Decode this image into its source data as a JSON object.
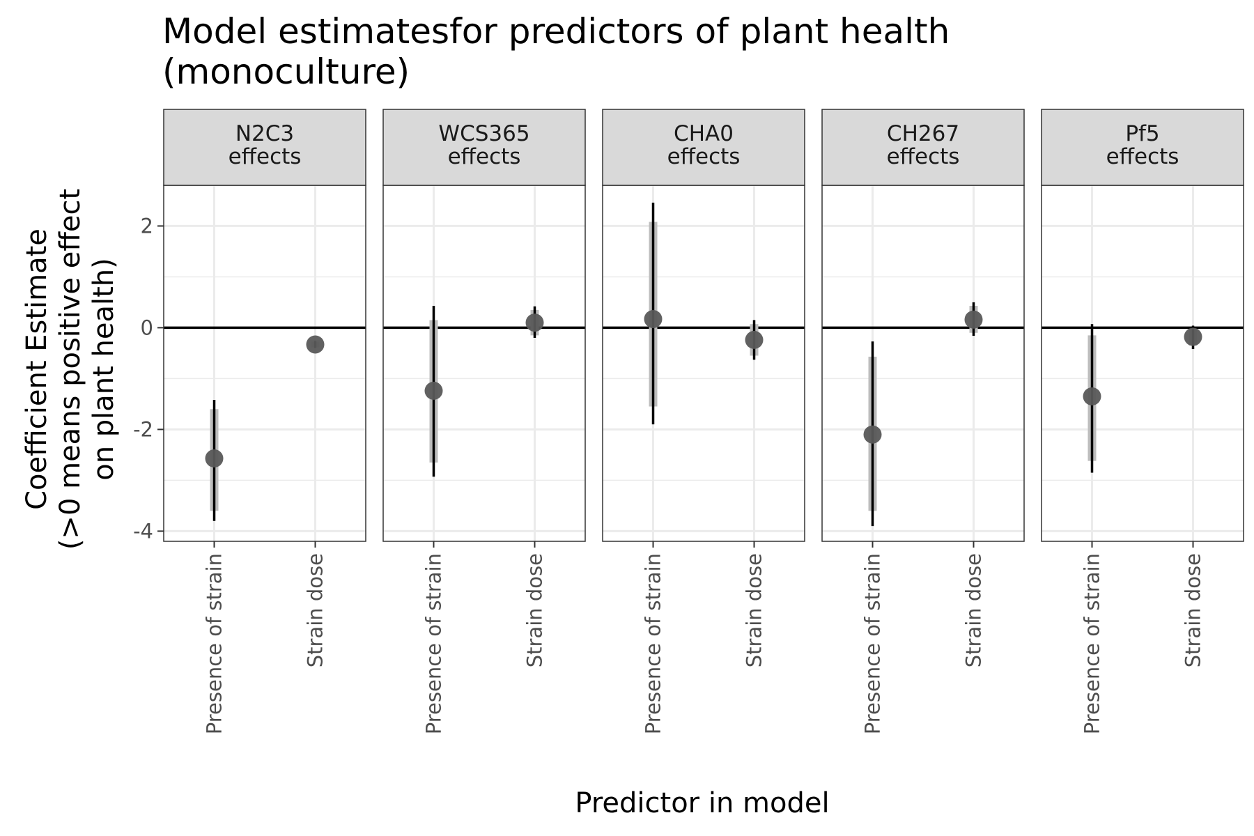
{
  "chart_data": {
    "type": "pointrange",
    "title_lines": [
      "Model estimatesfor predictors of plant health",
      "(monoculture)"
    ],
    "xlabel": "Predictor in model",
    "ylabel_lines": [
      "Coefficient Estimate",
      "(>0 means positive effect",
      "on plant health)"
    ],
    "ylim": [
      -4.2,
      2.8
    ],
    "y_ticks": [
      2,
      0,
      -2,
      -4
    ],
    "y_tick_labels": [
      "2",
      "0",
      "-2",
      "-4"
    ],
    "categories": [
      "Presence of strain",
      "Strain dose"
    ],
    "reference_line_y": 0,
    "grid": true,
    "colors": {
      "point": "#595959",
      "inner_interval": "#bdbdbd",
      "outer_interval": "#000000",
      "strip_fill": "#d9d9d9",
      "grid": "#ebebeb"
    },
    "panels": [
      {
        "strip_lines": [
          "N2C3",
          "effects"
        ],
        "points": [
          {
            "category": "Presence of strain",
            "estimate": -2.57,
            "inner": [
              -3.6,
              -1.6
            ],
            "outer": [
              -3.8,
              -1.42
            ]
          },
          {
            "category": "Strain dose",
            "estimate": -0.33,
            "inner": [
              -0.38,
              -0.28
            ],
            "outer": [
              -0.4,
              -0.26
            ]
          }
        ]
      },
      {
        "strip_lines": [
          "WCS365",
          "effects"
        ],
        "points": [
          {
            "category": "Presence of strain",
            "estimate": -1.24,
            "inner": [
              -2.65,
              0.15
            ],
            "outer": [
              -2.93,
              0.43
            ]
          },
          {
            "category": "Strain dose",
            "estimate": 0.1,
            "inner": [
              -0.15,
              0.35
            ],
            "outer": [
              -0.2,
              0.42
            ]
          }
        ]
      },
      {
        "strip_lines": [
          "CHA0",
          "effects"
        ],
        "points": [
          {
            "category": "Presence of strain",
            "estimate": 0.17,
            "inner": [
              -1.55,
              2.08
            ],
            "outer": [
              -1.9,
              2.46
            ]
          },
          {
            "category": "Strain dose",
            "estimate": -0.24,
            "inner": [
              -0.55,
              0.07
            ],
            "outer": [
              -0.63,
              0.15
            ]
          }
        ]
      },
      {
        "strip_lines": [
          "CH267",
          "effects"
        ],
        "points": [
          {
            "category": "Presence of strain",
            "estimate": -2.1,
            "inner": [
              -3.6,
              -0.57
            ],
            "outer": [
              -3.9,
              -0.27
            ]
          },
          {
            "category": "Strain dose",
            "estimate": 0.16,
            "inner": [
              -0.1,
              0.43
            ],
            "outer": [
              -0.16,
              0.5
            ]
          }
        ]
      },
      {
        "strip_lines": [
          "Pf5",
          "effects"
        ],
        "points": [
          {
            "category": "Presence of strain",
            "estimate": -1.35,
            "inner": [
              -2.62,
              -0.15
            ],
            "outer": [
              -2.85,
              0.07
            ]
          },
          {
            "category": "Strain dose",
            "estimate": -0.18,
            "inner": [
              -0.35,
              -0.03
            ],
            "outer": [
              -0.42,
              0.04
            ]
          }
        ]
      }
    ]
  }
}
